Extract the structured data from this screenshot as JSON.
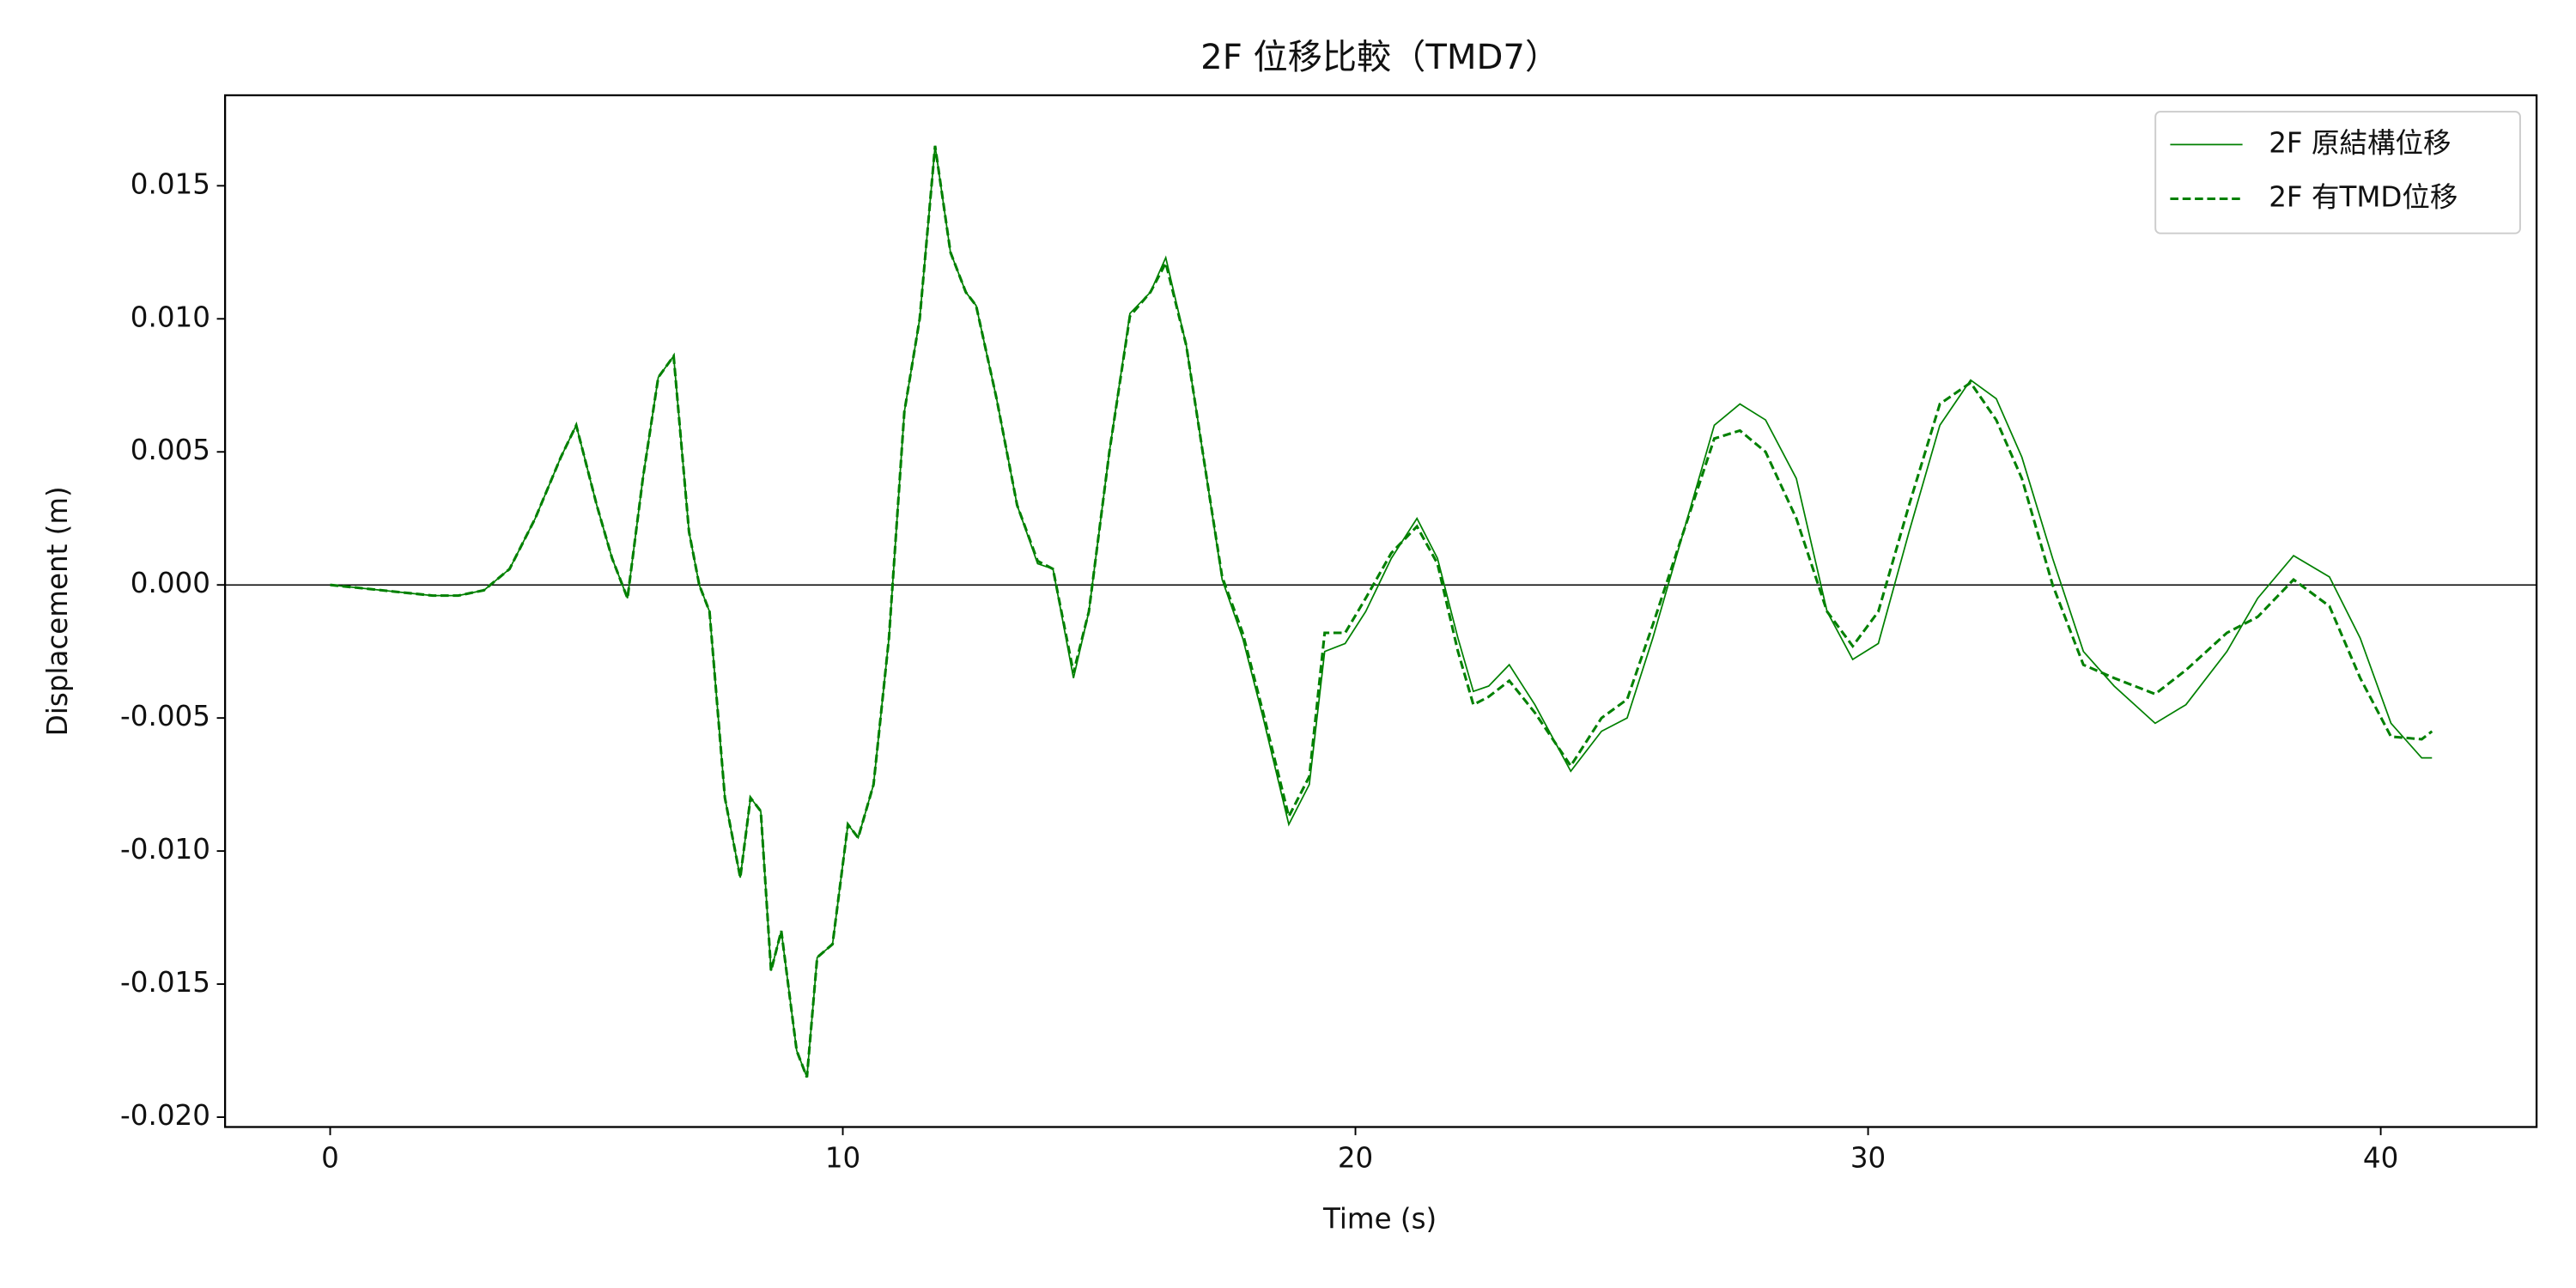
{
  "chart_data": {
    "type": "line",
    "title": "2F 位移比較（TMD7）",
    "x_label": "Time (s)",
    "y_label": "Displacement (m)",
    "x": [
      0,
      1,
      2,
      2.5,
      3,
      3.5,
      4,
      4.5,
      4.8,
      5.2,
      5.5,
      5.8,
      6.1,
      6.4,
      6.7,
      7.0,
      7.2,
      7.4,
      7.7,
      8.0,
      8.2,
      8.4,
      8.6,
      8.8,
      9.1,
      9.3,
      9.5,
      9.8,
      10.1,
      10.3,
      10.6,
      10.9,
      11.2,
      11.5,
      11.8,
      12.1,
      12.4,
      12.6,
      13,
      13.4,
      13.8,
      14.1,
      14.5,
      14.8,
      15.2,
      15.6,
      16.0,
      16.3,
      16.7,
      17.1,
      17.4,
      17.8,
      18.2,
      18.7,
      19.1,
      19.4,
      19.8,
      20.2,
      20.7,
      21.2,
      21.6,
      22.0,
      22.3,
      22.6,
      23.0,
      23.5,
      24.2,
      24.8,
      25.3,
      25.8,
      26.4,
      27.0,
      27.5,
      28.0,
      28.6,
      29.2,
      29.7,
      30.2,
      30.8,
      31.4,
      32.0,
      32.5,
      33.0,
      33.6,
      34.2,
      34.8,
      35.6,
      36.2,
      37.0,
      37.6,
      38.3,
      39.0,
      39.6,
      40.2,
      40.8,
      41
    ],
    "series": [
      {
        "name": "2F 原結構位移",
        "color": "#008000",
        "dash": "solid",
        "values": [
          0,
          -0.0002,
          -0.0004,
          -0.0004,
          -0.0002,
          0.0006,
          0.0025,
          0.0048,
          0.006,
          0.003,
          0.001,
          -0.0005,
          0.004,
          0.0078,
          0.0086,
          0.002,
          0,
          -0.001,
          -0.008,
          -0.011,
          -0.008,
          -0.0085,
          -0.0145,
          -0.013,
          -0.0175,
          -0.0185,
          -0.014,
          -0.0135,
          -0.009,
          -0.0095,
          -0.0075,
          -0.002,
          0.0065,
          0.01,
          0.0165,
          0.0125,
          0.011,
          0.0105,
          0.007,
          0.003,
          0.0008,
          0.0006,
          -0.0035,
          -0.001,
          0.005,
          0.0102,
          0.011,
          0.0123,
          0.009,
          0.004,
          0.0002,
          -0.002,
          -0.005,
          -0.009,
          -0.0075,
          -0.0025,
          -0.0022,
          -0.001,
          0.001,
          0.0025,
          0.001,
          -0.002,
          -0.004,
          -0.0038,
          -0.003,
          -0.0045,
          -0.007,
          -0.0055,
          -0.005,
          -0.002,
          0.002,
          0.006,
          0.0068,
          0.0062,
          0.004,
          -0.001,
          -0.0028,
          -0.0022,
          0.002,
          0.006,
          0.0077,
          0.007,
          0.0048,
          0.001,
          -0.0025,
          -0.0038,
          -0.0052,
          -0.0045,
          -0.0025,
          -0.0005,
          0.0011,
          0.0003,
          -0.002,
          -0.0052,
          -0.0065,
          -0.0065
        ]
      },
      {
        "name": "2F 有TMD位移",
        "color": "#008000",
        "dash": "dashed",
        "values": [
          0,
          -0.0002,
          -0.0004,
          -0.0004,
          -0.0002,
          0.0006,
          0.0025,
          0.0048,
          0.006,
          0.003,
          0.001,
          -0.0005,
          0.004,
          0.0078,
          0.0086,
          0.002,
          0,
          -0.001,
          -0.008,
          -0.011,
          -0.008,
          -0.0085,
          -0.0145,
          -0.013,
          -0.0175,
          -0.0185,
          -0.014,
          -0.0135,
          -0.009,
          -0.0095,
          -0.0075,
          -0.002,
          0.0065,
          0.01,
          0.0165,
          0.0125,
          0.011,
          0.0105,
          0.007,
          0.003,
          0.0009,
          0.0006,
          -0.0033,
          -0.001,
          0.005,
          0.0101,
          0.011,
          0.0121,
          0.009,
          0.004,
          0.0003,
          -0.0018,
          -0.0048,
          -0.0087,
          -0.0072,
          -0.0018,
          -0.0018,
          -0.0005,
          0.0012,
          0.0022,
          0.0008,
          -0.0025,
          -0.0045,
          -0.0042,
          -0.0036,
          -0.0048,
          -0.0068,
          -0.005,
          -0.0043,
          -0.0015,
          0.002,
          0.0055,
          0.0058,
          0.005,
          0.0025,
          -0.001,
          -0.0023,
          -0.001,
          0.003,
          0.0068,
          0.0076,
          0.0062,
          0.004,
          0,
          -0.003,
          -0.0035,
          -0.0041,
          -0.0032,
          -0.0018,
          -0.0012,
          0.0002,
          -0.0008,
          -0.0035,
          -0.0057,
          -0.0058,
          -0.0055
        ]
      }
    ],
    "xlim": [
      -2.05,
      43.04
    ],
    "ylim": [
      -0.02037,
      0.0184
    ],
    "xticks": [
      0,
      10,
      20,
      30,
      40
    ],
    "yticks": [
      {
        "value": -0.02,
        "label": "-0.020"
      },
      {
        "value": -0.015,
        "label": "-0.015"
      },
      {
        "value": -0.01,
        "label": "-0.010"
      },
      {
        "value": -0.005,
        "label": "-0.005"
      },
      {
        "value": 0,
        "label": "0.000"
      },
      {
        "value": 0.005,
        "label": "0.005"
      },
      {
        "value": 0.01,
        "label": "0.010"
      },
      {
        "value": 0.015,
        "label": "0.015"
      }
    ],
    "hline": 0,
    "grid": false,
    "legend": "upper right"
  }
}
